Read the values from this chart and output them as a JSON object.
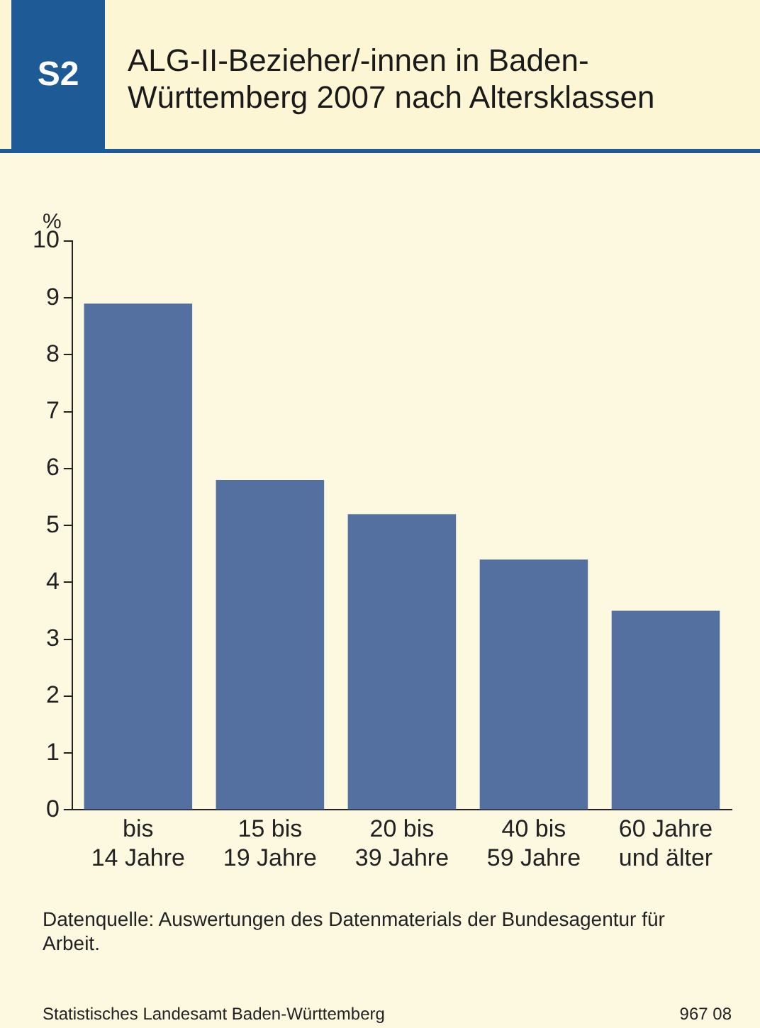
{
  "chart_data": {
    "type": "bar",
    "title": "ALG-II-Bezieher/-innen in Baden-Württemberg 2007 nach Altersklassen",
    "ylabel": "%",
    "categories": [
      "bis\n14 Jahre",
      "15 bis\n19 Jahre",
      "20 bis\n39 Jahre",
      "40 bis\n59 Jahre",
      "60 Jahre\nund älter"
    ],
    "values": [
      8.9,
      5.8,
      5.2,
      4.4,
      3.5
    ],
    "color": "#5470a0",
    "ylim": [
      0,
      10
    ],
    "yticks": [
      0,
      1,
      2,
      3,
      4,
      5,
      6,
      7,
      8,
      9,
      10
    ],
    "grid": false,
    "legend": false,
    "annotations": [
      "S2",
      "Datenquelle: Auswertungen des Datenmaterials der Bundesagentur für Arbeit.",
      "Statistisches Landesamt Baden-Württemberg",
      "967 08"
    ]
  }
}
